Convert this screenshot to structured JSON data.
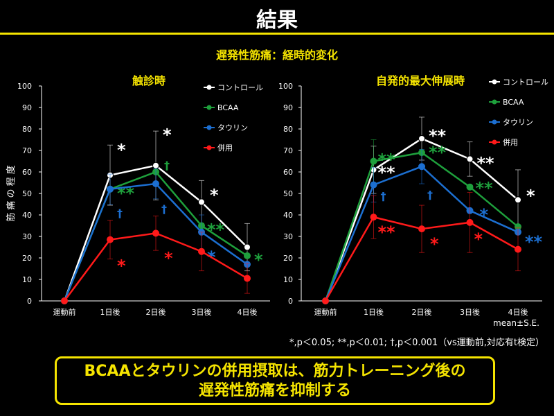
{
  "title": "結果",
  "subtitle": "遅発性筋痛：経時的変化",
  "footnote": "*,p＜0.05; **,p＜0.01; †,p＜0.001（vs運動前,対応有t検定）",
  "mean_se": "mean±S.E.",
  "conclusion": {
    "line1": "BCAAとタウリンの併用摂取は、筋力トレーニング後の",
    "line2": "遅発性筋痛を抑制する"
  },
  "colors": {
    "accent": "#f5e400",
    "control": "#ffffff",
    "bcaa": "#1ea03c",
    "taurine": "#1c6fd1",
    "combined": "#ff1a1a"
  },
  "chart_data": [
    {
      "type": "line",
      "title": "触診時",
      "ylabel": "筋 痛 の 程 度",
      "ylim": [
        0,
        100
      ],
      "yticks": [
        0,
        10,
        20,
        30,
        40,
        50,
        60,
        70,
        80,
        90,
        100
      ],
      "categories": [
        "運動前",
        "1日後",
        "2日後",
        "3日後",
        "4日後"
      ],
      "series": [
        {
          "name": "コントロール",
          "color": "#ffffff",
          "values": [
            0,
            58.5,
            63,
            46,
            25
          ],
          "errors": [
            0,
            14,
            16,
            10,
            11
          ],
          "marks": [
            {
              "i": 1,
              "text": "*",
              "dx": 10,
              "dy": -28
            },
            {
              "i": 2,
              "text": "*",
              "dx": 10,
              "dy": -36
            },
            {
              "i": 3,
              "text": "*",
              "dx": 12,
              "dy": -2
            }
          ]
        },
        {
          "name": "BCAA",
          "color": "#1ea03c",
          "values": [
            0,
            52,
            60,
            35,
            21
          ],
          "errors": [
            0,
            0,
            0,
            0,
            0
          ],
          "marks": [
            {
              "i": 1,
              "text": "**",
              "dx": 10,
              "dy": 14
            },
            {
              "i": 2,
              "text": "†",
              "dx": 12,
              "dy": -4
            },
            {
              "i": 3,
              "text": "**",
              "dx": 8,
              "dy": 14
            },
            {
              "i": 4,
              "text": "*",
              "dx": 10,
              "dy": 14
            }
          ]
        },
        {
          "name": "タウリン",
          "color": "#1c6fd1",
          "values": [
            0,
            52,
            54.5,
            32,
            17
          ],
          "errors": [
            0,
            7,
            7,
            8,
            0
          ],
          "marks": [
            {
              "i": 1,
              "text": "†",
              "dx": 10,
              "dy": 40
            },
            {
              "i": 2,
              "text": "†",
              "dx": 8,
              "dy": 42
            },
            {
              "i": 3,
              "text": "*",
              "dx": 8,
              "dy": 44
            }
          ]
        },
        {
          "name": "併用",
          "color": "#ff1a1a",
          "values": [
            0,
            28.5,
            31.5,
            23,
            10.5
          ],
          "errors": [
            0,
            9,
            8,
            9,
            7
          ],
          "marks": [
            {
              "i": 1,
              "text": "*",
              "dx": 10,
              "dy": 46
            },
            {
              "i": 2,
              "text": "*",
              "dx": 12,
              "dy": 44
            }
          ]
        }
      ]
    },
    {
      "type": "line",
      "title": "自発的最大伸展時",
      "ylim": [
        0,
        100
      ],
      "yticks": [
        0,
        10,
        20,
        30,
        40,
        50,
        60,
        70,
        80,
        90,
        100
      ],
      "categories": [
        "運動前",
        "1日後",
        "2日後",
        "3日後",
        "4日後"
      ],
      "series": [
        {
          "name": "コントロール",
          "color": "#ffffff",
          "values": [
            0,
            61,
            75.5,
            66,
            47
          ],
          "errors": [
            0,
            11,
            10,
            8,
            14
          ],
          "marks": [
            {
              "i": 1,
              "text": "**",
              "dx": 6,
              "dy": 12
            },
            {
              "i": 2,
              "text": "**",
              "dx": 10,
              "dy": 4
            },
            {
              "i": 3,
              "text": "**",
              "dx": 10,
              "dy": 14
            },
            {
              "i": 4,
              "text": "*",
              "dx": 12,
              "dy": 2
            }
          ]
        },
        {
          "name": "BCAA",
          "color": "#1ea03c",
          "values": [
            0,
            65,
            69,
            53,
            34.5
          ],
          "errors": [
            0,
            10,
            0,
            0,
            0
          ],
          "marks": [
            {
              "i": 1,
              "text": "**",
              "dx": 6,
              "dy": 6
            },
            {
              "i": 2,
              "text": "**",
              "dx": 10,
              "dy": 8
            },
            {
              "i": 3,
              "text": "**",
              "dx": 8,
              "dy": 10
            }
          ]
        },
        {
          "name": "タウリン",
          "color": "#1c6fd1",
          "values": [
            0,
            54,
            62.5,
            42,
            32
          ],
          "errors": [
            0,
            8,
            8,
            0,
            0
          ],
          "marks": [
            {
              "i": 1,
              "text": "†",
              "dx": 10,
              "dy": 22
            },
            {
              "i": 2,
              "text": "†",
              "dx": 8,
              "dy": 46
            },
            {
              "i": 3,
              "text": "*",
              "dx": 14,
              "dy": 14
            },
            {
              "i": 4,
              "text": "**",
              "dx": 10,
              "dy": 22
            }
          ]
        },
        {
          "name": "併用",
          "color": "#ff1a1a",
          "values": [
            0,
            39,
            33.5,
            36.5,
            24
          ],
          "errors": [
            0,
            10,
            11,
            14,
            10
          ],
          "marks": [
            {
              "i": 1,
              "text": "**",
              "dx": 6,
              "dy": 30
            },
            {
              "i": 2,
              "text": "*",
              "dx": 12,
              "dy": 30
            },
            {
              "i": 3,
              "text": "*",
              "dx": 6,
              "dy": 32
            }
          ]
        }
      ]
    }
  ]
}
